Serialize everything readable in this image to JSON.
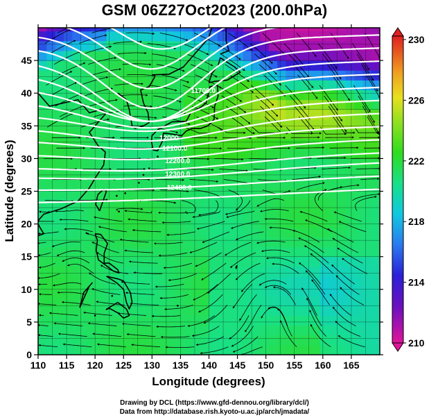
{
  "title": "GSM 06Z27Oct2023 (200.0hPa)",
  "credits": {
    "line1": "Drawing by DCL (https://www.gfd-dennou.org/library/dcl/)",
    "line2": "Data from http://database.rish.kyoto-u.ac.jp/arch/jmadata/"
  },
  "chart_data": {
    "type": "heatmap",
    "xlabel": "Longitude (degrees)",
    "ylabel": "Latitude  (degrees)",
    "xlim": [
      110,
      170
    ],
    "ylim": [
      0,
      50
    ],
    "x_ticks": [
      "110",
      "115",
      "120",
      "125",
      "130",
      "135",
      "140",
      "145",
      "150",
      "155",
      "160",
      "165"
    ],
    "y_ticks": [
      "0",
      "5",
      "10",
      "15",
      "20",
      "25",
      "30",
      "35",
      "40",
      "45"
    ],
    "colorbar": {
      "min": 210,
      "max": 230,
      "labels": [
        "230",
        "226",
        "222",
        "218",
        "214",
        "210"
      ],
      "colors": [
        "#e0149a",
        "#3a1ccc",
        "#2c7df0",
        "#12c8d8",
        "#1fe47a",
        "#40e01a",
        "#b8e030",
        "#f0d020",
        "#f07020",
        "#e02820"
      ]
    },
    "contour_labels": [
      "11700.0",
      "12000",
      "12100.0",
      "12200.0",
      "12300.0",
      "12400.0"
    ],
    "colors": {
      "streamline": "#000000",
      "contour": "#ffffff",
      "coastline": "#000000"
    }
  }
}
